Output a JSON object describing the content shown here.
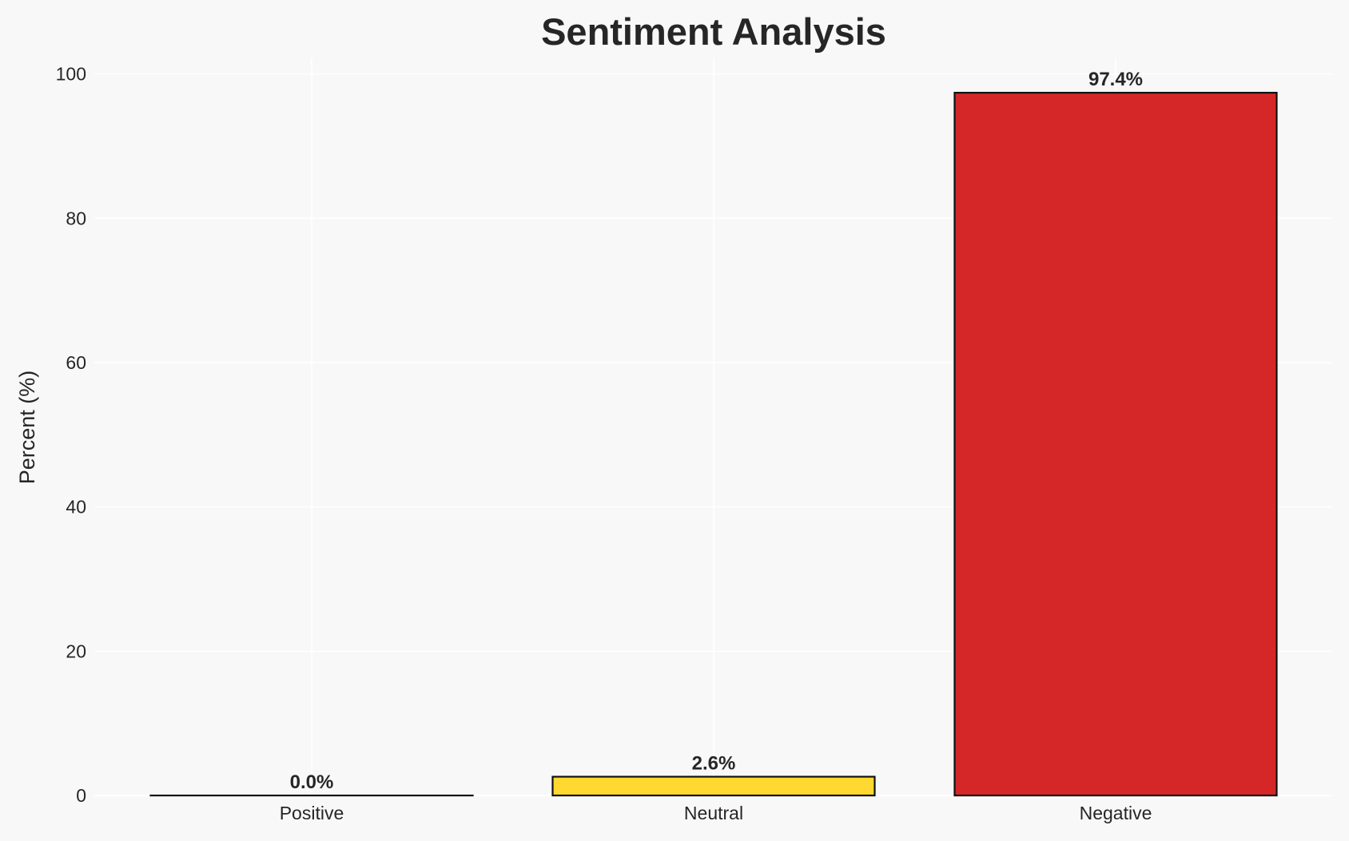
{
  "chart_data": {
    "type": "bar",
    "title": "Sentiment Analysis",
    "xlabel": "",
    "ylabel": "Percent (%)",
    "categories": [
      "Positive",
      "Neutral",
      "Negative"
    ],
    "values": [
      0.0,
      2.6,
      97.4
    ],
    "data_labels": [
      "0.0%",
      "2.6%",
      "97.4%"
    ],
    "colors": [
      "#2ca02c",
      "#ffd92f",
      "#d62728"
    ],
    "edge_color": "#111111",
    "ylim": [
      0,
      102.5
    ],
    "yticks": [
      0,
      20,
      40,
      60,
      80,
      100
    ],
    "ytick_labels": [
      "0",
      "20",
      "40",
      "60",
      "80",
      "100"
    ],
    "grid": true,
    "background": "#f8f8f8",
    "grid_color": "#ffffff"
  }
}
